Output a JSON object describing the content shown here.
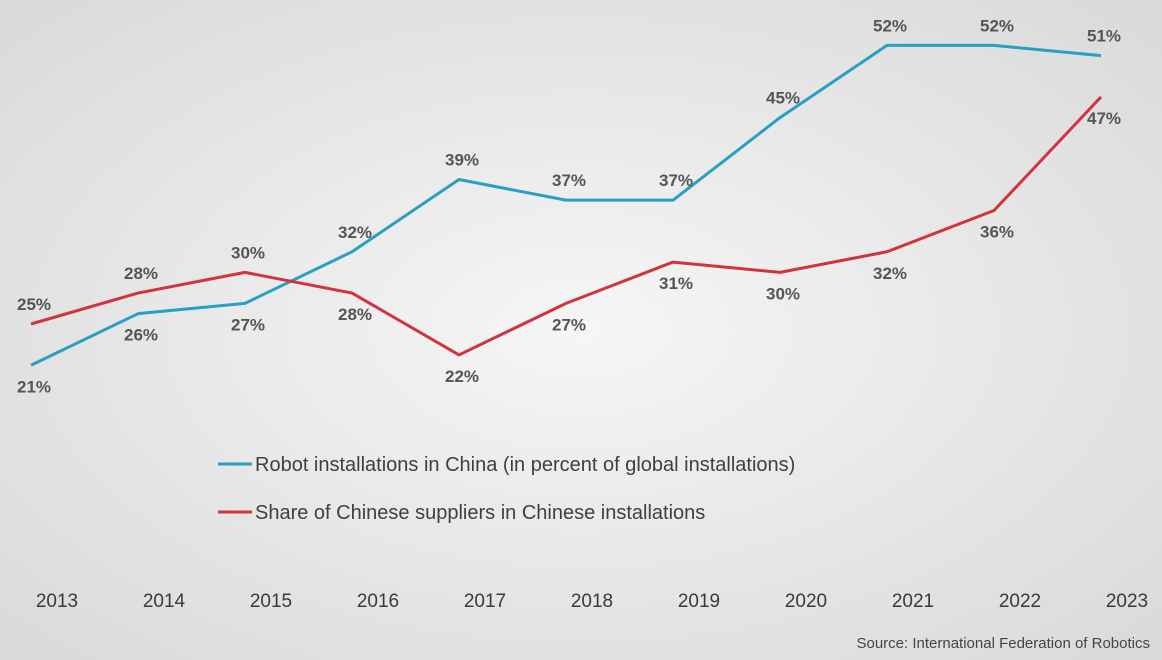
{
  "chart_data": {
    "type": "line",
    "categories": [
      "2013",
      "2014",
      "2015",
      "2016",
      "2017",
      "2018",
      "2019",
      "2020",
      "2021",
      "2022",
      "2023"
    ],
    "series": [
      {
        "name": "Robot installations in China (in percent of global installations)",
        "values": [
          21,
          26,
          27,
          32,
          39,
          37,
          37,
          45,
          52,
          52,
          51
        ],
        "color": "#2a9fc4",
        "label_pos": [
          "below",
          "below",
          "below",
          "above",
          "above",
          "above",
          "above",
          "above",
          "above",
          "above",
          "above"
        ]
      },
      {
        "name": "Share of Chinese suppliers in Chinese installations",
        "values": [
          25,
          28,
          30,
          28,
          22,
          27,
          31,
          30,
          32,
          36,
          47
        ],
        "color": "#d1333f",
        "label_pos": [
          "above",
          "above",
          "above",
          "below",
          "below",
          "below",
          "below",
          "below",
          "below",
          "below",
          "below"
        ]
      }
    ],
    "value_suffix": "%",
    "ylim": [
      0,
      56
    ],
    "grid": false,
    "legend_position": "center",
    "source": "Source: International Federation of Robotics"
  }
}
